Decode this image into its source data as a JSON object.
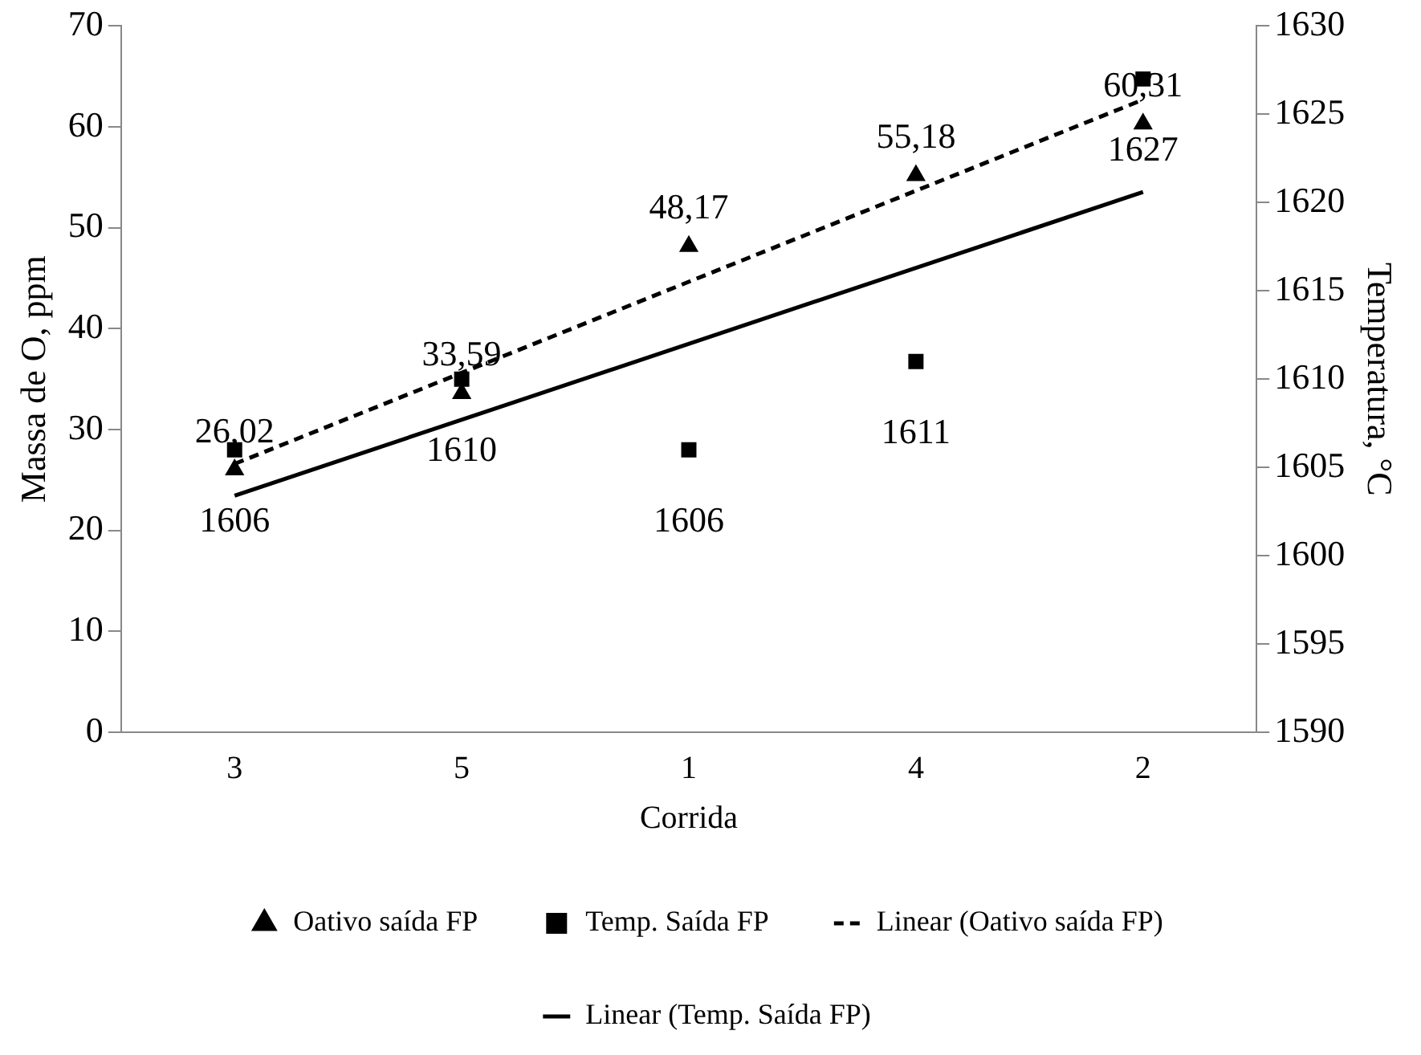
{
  "chart_data": {
    "type": "scatter",
    "xlabel": "Corrida",
    "ylabel": "Massa de O, ppm",
    "y2label": "Temperatura, °C",
    "categories": [
      "3",
      "5",
      "1",
      "4",
      "2"
    ],
    "ylim": [
      0,
      70
    ],
    "yticks": [
      0,
      10,
      20,
      30,
      40,
      50,
      60,
      70
    ],
    "y2lim": [
      1590,
      1630
    ],
    "y2ticks": [
      1590,
      1595,
      1600,
      1605,
      1610,
      1615,
      1620,
      1625,
      1630
    ],
    "grid": false,
    "legend": "bottom",
    "series": [
      {
        "name": "Oativo saída FP",
        "marker": "triangle",
        "color": "#000000",
        "values": [
          26.02,
          33.59,
          48.17,
          55.18,
          60.31
        ],
        "value_labels": [
          "26,02",
          "33,59",
          "48,17",
          "55,18",
          "60,31"
        ]
      },
      {
        "name": "Temp. Saída FP",
        "marker": "square",
        "color": "#000000",
        "axis": "y2",
        "values": [
          1606,
          1610,
          1606,
          1611,
          1627
        ],
        "value_labels": [
          "1606",
          "1610",
          "1606",
          "1611",
          "1627"
        ]
      },
      {
        "name": "Linear (Oativo saída FP)",
        "type": "line",
        "marker": "none",
        "line_style": "dashed",
        "color": "#000000",
        "x": [
          "3",
          "2"
        ],
        "values": [
          26.6,
          62.7
        ]
      },
      {
        "name": "Linear (Temp. Saída FP)",
        "type": "line",
        "marker": "none",
        "line_style": "solid",
        "color": "#000000",
        "axis": "y2",
        "x": [
          "3",
          "2"
        ],
        "values": [
          1603.4,
          1620.6
        ]
      }
    ]
  }
}
